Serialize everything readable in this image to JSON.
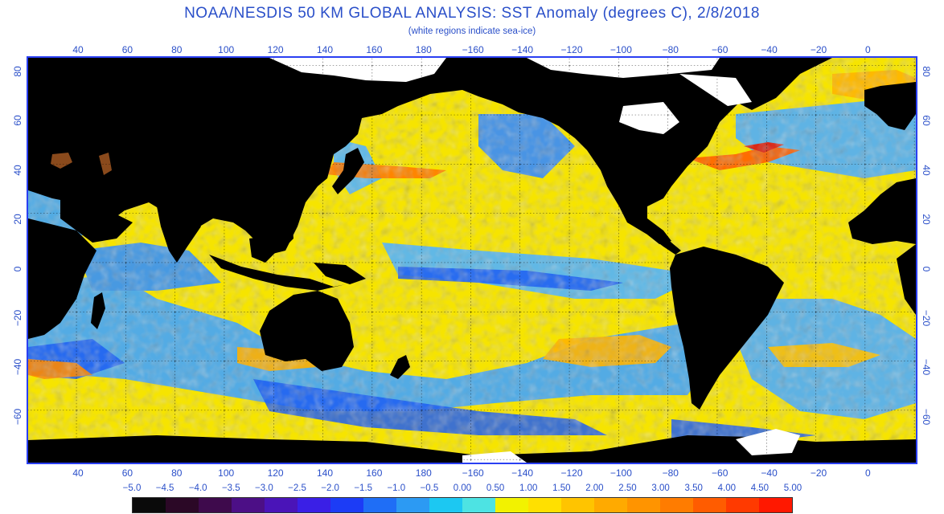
{
  "title": "NOAA/NESDIS 50 KM GLOBAL ANALYSIS: SST Anomaly (degrees C), 2/8/2018",
  "subtitle": "(white regions indicate sea-ice)",
  "longitude_ticks": [
    "40",
    "60",
    "80",
    "100",
    "120",
    "140",
    "160",
    "180",
    "−160",
    "−140",
    "−120",
    "−100",
    "−80",
    "−60",
    "−40",
    "−20",
    "0"
  ],
  "latitude_ticks": [
    "80",
    "60",
    "40",
    "20",
    "0",
    "−20",
    "−40",
    "−60"
  ],
  "legend": {
    "labels": [
      "−5.0",
      "−4.5",
      "−4.0",
      "−3.5",
      "−3.0",
      "−2.5",
      "−2.0",
      "−1.5",
      "−1.0",
      "−0.5",
      "0.00",
      "0.50",
      "1.00",
      "1.50",
      "2.00",
      "2.50",
      "3.00",
      "3.50",
      "4.00",
      "4.50",
      "5.00"
    ],
    "colors": [
      "#0a0a0a",
      "#2b0826",
      "#3e0a4c",
      "#4c0f86",
      "#4a14b8",
      "#3a1fe6",
      "#1c3cf6",
      "#1f6ef6",
      "#2c9af3",
      "#1cc8f2",
      "#4de3e3",
      "#f2f200",
      "#ffe000",
      "#ffc400",
      "#ffaa00",
      "#ff9400",
      "#ff7c00",
      "#ff5c00",
      "#ff3a00",
      "#ff1800"
    ]
  },
  "colors": {
    "land": "#000000",
    "sea_ice": "#ffffff",
    "frame": "#2a3ff2",
    "text": "#2a4fc9"
  }
}
